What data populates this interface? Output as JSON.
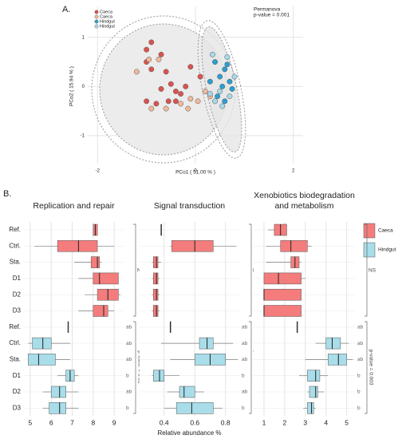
{
  "chart_data": [
    {
      "type": "scatter",
      "panel_label": "A.",
      "xlabel": "PCo1 ( 51.00 % )",
      "ylabel": "PCo2 ( 15.94 % )",
      "annotation": [
        "Permanova",
        "p-value = 0.001"
      ],
      "xlim": [
        -2.2,
        2.2
      ],
      "ylim": [
        -1.57,
        1.63
      ],
      "xticks": [
        -2,
        0,
        2
      ],
      "yticks": [
        -1,
        0,
        1
      ],
      "grid": true,
      "series": [
        {
          "name": "Caeca",
          "color": "#d9534f",
          "x": [
            -1.0,
            -0.9,
            -1.0,
            -0.7,
            -0.6,
            -0.9,
            -0.5,
            -0.7,
            -0.4,
            -0.8,
            -1.0,
            -0.55,
            -0.4,
            -0.3,
            -0.1,
            0.1,
            -0.2
          ],
          "y": [
            0.75,
            0.9,
            0.5,
            0.65,
            0.3,
            0.35,
            0.05,
            -0.05,
            -0.1,
            -0.35,
            -0.3,
            -0.3,
            -0.3,
            -0.15,
            0.4,
            0.2,
            0.0
          ]
        },
        {
          "name": "Caeca",
          "color": "#f0b89a",
          "x": [
            -0.95,
            -1.2,
            -0.75,
            -0.6,
            -0.9,
            -0.3,
            -0.1,
            0.05,
            0.2,
            0.3,
            -0.15
          ],
          "y": [
            0.55,
            0.3,
            0.55,
            -0.45,
            -0.45,
            -0.35,
            -0.25,
            -0.3,
            -0.1,
            -0.2,
            -0.45
          ]
        },
        {
          "name": "Hindgut",
          "color": "#2a9fd0",
          "x": [
            0.4,
            0.6,
            0.5,
            0.7,
            0.55,
            0.65,
            0.3,
            0.75,
            0.45,
            0.6
          ],
          "y": [
            0.5,
            0.35,
            0.2,
            0.1,
            0.0,
            0.45,
            0.1,
            -0.05,
            -0.2,
            -0.3
          ]
        },
        {
          "name": "Hindgut",
          "color": "#a8d8ea",
          "x": [
            0.35,
            0.5,
            0.7,
            0.4,
            0.8,
            0.3,
            0.55,
            0.65
          ],
          "y": [
            0.65,
            -0.1,
            -0.2,
            -0.3,
            0.2,
            -0.15,
            -0.4,
            0.6
          ]
        }
      ]
    },
    {
      "type": "box",
      "panel_label": "B.",
      "title": [
        "Replication and repair"
      ],
      "categories": [
        "Ref.",
        "Ctrl.",
        "Sta.",
        "D1",
        "D2",
        "D3"
      ],
      "xlim": [
        4.7,
        9.45
      ],
      "xticks": [
        5,
        6,
        7,
        8,
        9
      ],
      "grid": true,
      "top_annotation": "NS",
      "bottom_annotation": "p-value = 0.01",
      "letters": [
        "ab",
        "ab",
        "ab",
        "b",
        "ab",
        "b"
      ],
      "series": [
        {
          "name": "Caeca",
          "color": "#f47c7c",
          "values": [
            {
              "min": 8.0,
              "q1": 8.0,
              "median": 8.1,
              "q3": 8.2,
              "max": 8.2
            },
            {
              "min": 5.2,
              "q1": 6.3,
              "median": 7.3,
              "q3": 8.2,
              "max": 9.0
            },
            {
              "min": 7.1,
              "q1": 7.9,
              "median": 8.2,
              "q3": 8.3,
              "max": 8.4
            },
            {
              "min": 7.3,
              "q1": 8.0,
              "median": 8.3,
              "q3": 9.2,
              "max": 9.2
            },
            {
              "min": 7.6,
              "q1": 8.2,
              "median": 8.7,
              "q3": 9.2,
              "max": 9.3
            },
            {
              "min": 7.3,
              "q1": 8.0,
              "median": 8.5,
              "q3": 8.7,
              "max": 9.0
            }
          ]
        },
        {
          "name": "Hindgut",
          "color": "#a8dde9",
          "values": [
            {
              "min": 6.8,
              "q1": 6.8,
              "median": 6.8,
              "q3": 6.8,
              "max": 6.8
            },
            {
              "min": 4.9,
              "q1": 5.1,
              "median": 5.6,
              "q3": 6.0,
              "max": 6.9
            },
            {
              "min": 4.9,
              "q1": 4.9,
              "median": 5.4,
              "q3": 6.2,
              "max": 6.9
            },
            {
              "min": 6.3,
              "q1": 6.7,
              "median": 6.9,
              "q3": 7.1,
              "max": 7.3
            },
            {
              "min": 5.6,
              "q1": 6.0,
              "median": 6.4,
              "q3": 6.7,
              "max": 7.3
            },
            {
              "min": 5.6,
              "q1": 5.9,
              "median": 6.4,
              "q3": 6.7,
              "max": 7.3
            }
          ]
        }
      ]
    },
    {
      "type": "box",
      "title": [
        "Signal transduction"
      ],
      "xlabel": "Relative abundance %",
      "xlim": [
        0.24,
        0.89
      ],
      "xticks": [
        0.4,
        0.6,
        0.8
      ],
      "grid": true,
      "top_annotation": "NS",
      "bottom_annotation": "p-value = 0.02",
      "letters": [
        "ab",
        "ab",
        "ab",
        "b",
        "ab",
        "b"
      ],
      "series": [
        {
          "name": "Caeca",
          "color": "#f47c7c",
          "values": [
            {
              "min": 0.38,
              "q1": 0.38,
              "median": 0.38,
              "q3": 0.38,
              "max": 0.38
            },
            {
              "min": 0.44,
              "q1": 0.45,
              "median": 0.6,
              "q3": 0.72,
              "max": 0.87
            },
            {
              "min": 0.32,
              "q1": 0.33,
              "median": 0.35,
              "q3": 0.36,
              "max": 0.38
            },
            {
              "min": 0.32,
              "q1": 0.33,
              "median": 0.35,
              "q3": 0.36,
              "max": 0.37
            },
            {
              "min": 0.32,
              "q1": 0.33,
              "median": 0.35,
              "q3": 0.36,
              "max": 0.37
            },
            {
              "min": 0.32,
              "q1": 0.33,
              "median": 0.35,
              "q3": 0.36,
              "max": 0.37
            }
          ]
        },
        {
          "name": "Hindgut",
          "color": "#a8dde9",
          "values": [
            {
              "min": 0.44,
              "q1": 0.44,
              "median": 0.44,
              "q3": 0.44,
              "max": 0.44
            },
            {
              "min": 0.38,
              "q1": 0.63,
              "median": 0.68,
              "q3": 0.72,
              "max": 0.85
            },
            {
              "min": 0.44,
              "q1": 0.6,
              "median": 0.7,
              "q3": 0.8,
              "max": 0.88
            },
            {
              "min": 0.32,
              "q1": 0.33,
              "median": 0.37,
              "q3": 0.4,
              "max": 0.5
            },
            {
              "min": 0.42,
              "q1": 0.5,
              "median": 0.53,
              "q3": 0.6,
              "max": 0.66
            },
            {
              "min": 0.4,
              "q1": 0.48,
              "median": 0.58,
              "q3": 0.72,
              "max": 0.78
            }
          ]
        }
      ]
    },
    {
      "type": "box",
      "title": [
        "Xenobiotics biodegradation",
        "and metabolism"
      ],
      "xlim": [
        0.5,
        5.4
      ],
      "xticks": [
        1,
        2,
        3,
        4,
        5
      ],
      "grid": true,
      "top_annotation": "NS",
      "bottom_annotation": "p-value = 0.003",
      "letters": [
        "ab",
        "ab",
        "ab",
        "b",
        "b",
        "b"
      ],
      "series": [
        {
          "name": "Caeca",
          "color": "#f47c7c",
          "values": [
            {
              "min": 1.2,
              "q1": 1.5,
              "median": 1.8,
              "q3": 2.1,
              "max": 2.1
            },
            {
              "min": 1.1,
              "q1": 1.8,
              "median": 2.3,
              "q3": 3.1,
              "max": 3.3
            },
            {
              "min": 1.1,
              "q1": 2.3,
              "median": 2.5,
              "q3": 2.7,
              "max": 2.8
            },
            {
              "min": 1.0,
              "q1": 1.0,
              "median": 1.7,
              "q3": 2.8,
              "max": 3.0
            },
            {
              "min": 1.0,
              "q1": 1.0,
              "median": 1.0,
              "q3": 2.8,
              "max": 2.8
            },
            {
              "min": 1.0,
              "q1": 1.0,
              "median": 1.0,
              "q3": 2.8,
              "max": 2.8
            }
          ]
        },
        {
          "name": "Hindgut",
          "color": "#a8dde9",
          "values": [
            {
              "min": 2.6,
              "q1": 2.6,
              "median": 2.6,
              "q3": 2.6,
              "max": 2.6
            },
            {
              "min": 3.5,
              "q1": 4.0,
              "median": 4.3,
              "q3": 4.7,
              "max": 5.1
            },
            {
              "min": 3.0,
              "q1": 4.1,
              "median": 4.6,
              "q3": 5.0,
              "max": 5.3
            },
            {
              "min": 2.7,
              "q1": 3.1,
              "median": 3.5,
              "q3": 3.7,
              "max": 4.1
            },
            {
              "min": 3.1,
              "q1": 3.2,
              "median": 3.5,
              "q3": 3.6,
              "max": 3.9
            },
            {
              "min": 2.9,
              "q1": 3.1,
              "median": 3.3,
              "q3": 3.4,
              "max": 3.5
            }
          ]
        }
      ]
    }
  ]
}
